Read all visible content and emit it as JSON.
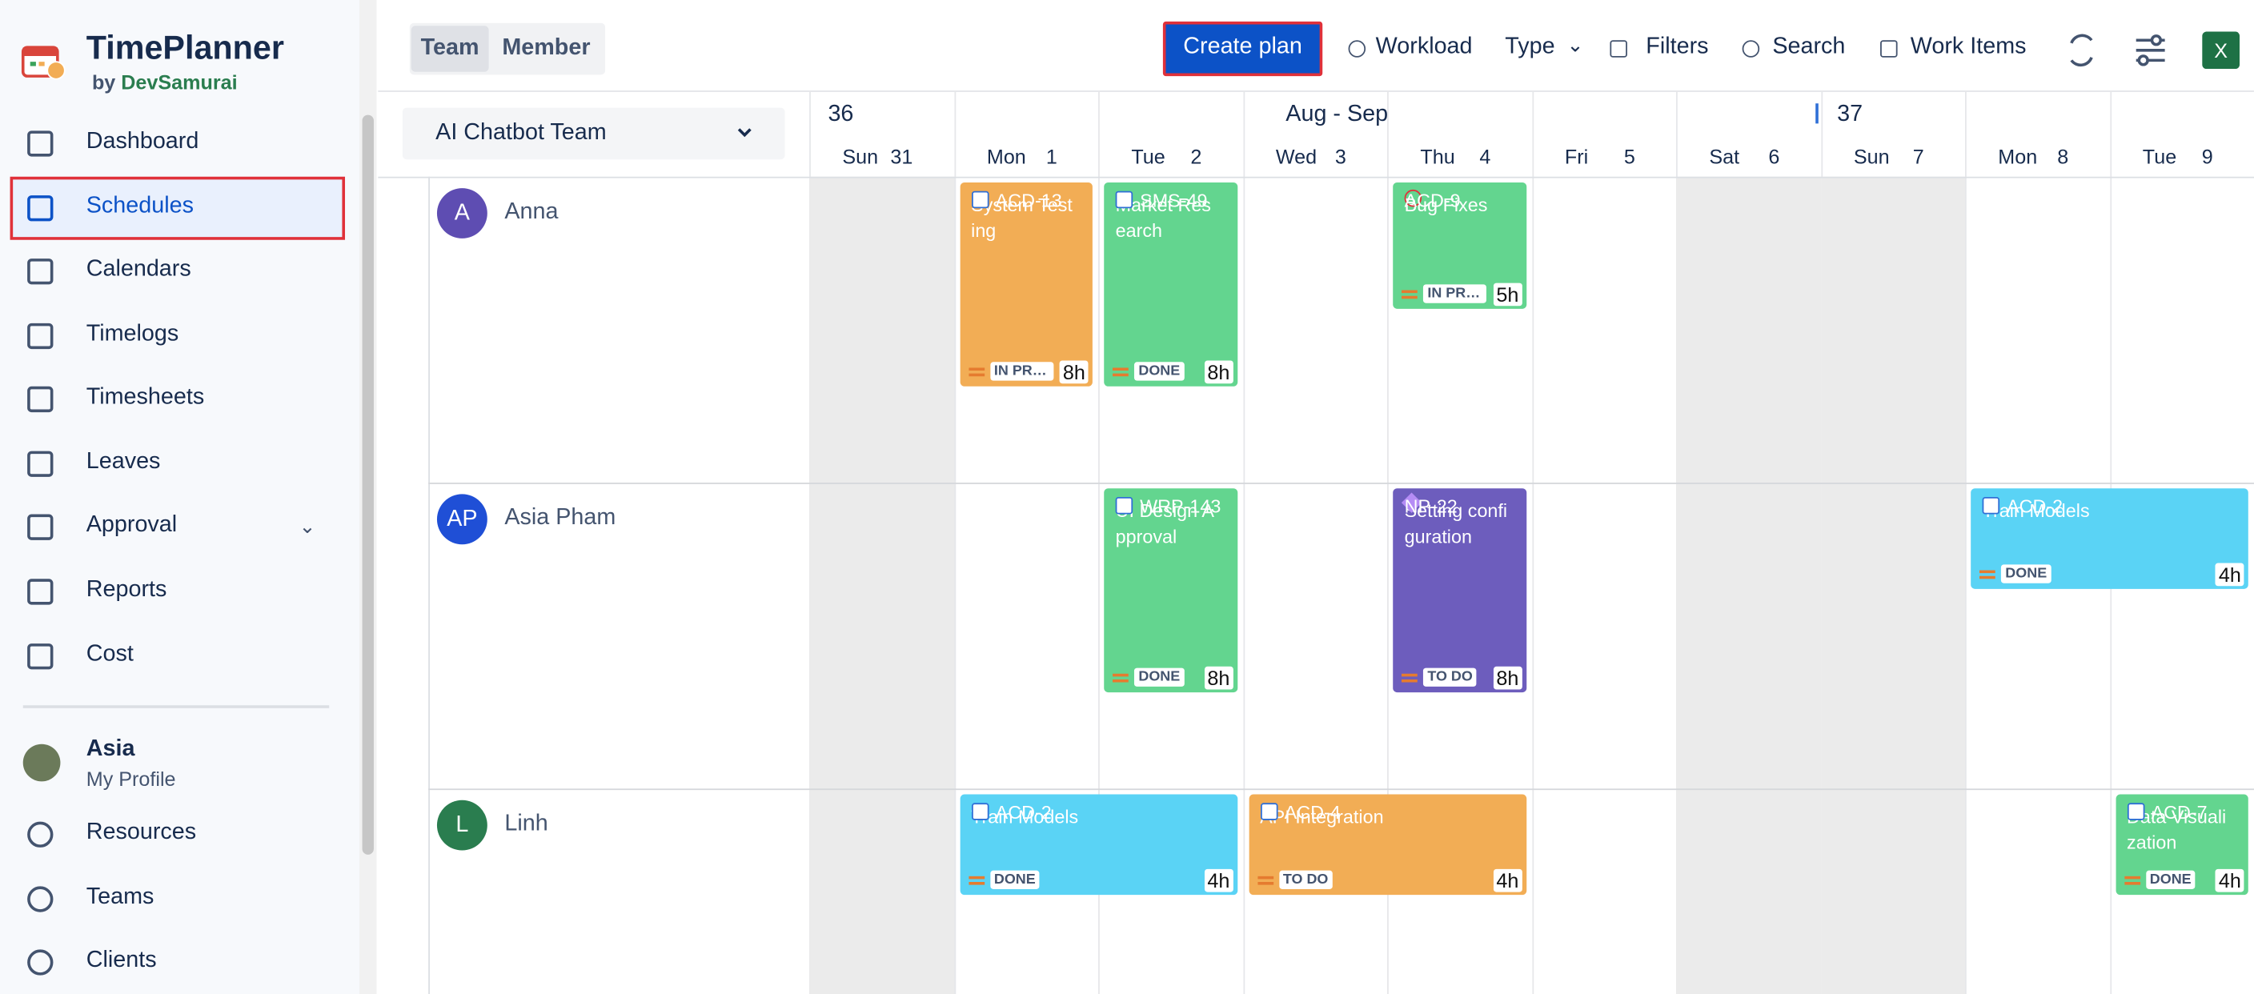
{
  "app": {
    "title": "TimePlanner",
    "by": "by",
    "brand": "DevSamurai"
  },
  "nav": {
    "items": [
      "Dashboard",
      "Schedules",
      "Calendars",
      "Timelogs",
      "Timesheets",
      "Leaves",
      "Approval",
      "Reports",
      "Cost"
    ],
    "profile": {
      "name": "Asia",
      "sub": "My Profile"
    },
    "items2": [
      "Resources",
      "Teams",
      "Clients"
    ]
  },
  "toolbar": {
    "tabs": [
      "Team",
      "Member"
    ],
    "create": "Create plan",
    "buttons": [
      "Workload",
      "Type",
      "Filters",
      "Search",
      "Work Items"
    ]
  },
  "team_select": "AI Chatbot Team",
  "calendar": {
    "weeks": [
      "36",
      "37"
    ],
    "month": "Aug - Sep",
    "days": [
      {
        "name": "Sun",
        "num": 31
      },
      {
        "name": "Mon",
        "num": 1
      },
      {
        "name": "Tue",
        "num": 2
      },
      {
        "name": "Wed",
        "num": 3
      },
      {
        "name": "Thu",
        "num": 4
      },
      {
        "name": "Fri",
        "num": 5
      },
      {
        "name": "Sat",
        "num": 6
      },
      {
        "name": "Sun",
        "num": 7
      },
      {
        "name": "Mon",
        "num": 8
      },
      {
        "name": "Tue",
        "num": 9
      }
    ]
  },
  "members": [
    {
      "initials": "A",
      "name": "Anna",
      "tasks": [
        {
          "key": "ACD-13",
          "title": "System Testing",
          "status": "IN PROGRESS",
          "hours": "8h"
        },
        {
          "key": "SMS-49",
          "title": "Market Research",
          "status": "DONE",
          "hours": "8h"
        },
        {
          "key": "ACD-9",
          "title": "Bug Fixes",
          "status": "IN PROGRESS",
          "hours": "5h"
        }
      ]
    },
    {
      "initials": "AP",
      "name": "Asia Pham",
      "tasks": [
        {
          "key": "WRP-143",
          "title": "UI Design Approval",
          "status": "DONE",
          "hours": "8h"
        },
        {
          "key": "NP-22",
          "title": "Setting configuration",
          "status": "TO DO",
          "hours": "8h"
        },
        {
          "key": "ACD-2",
          "title": "Train Models",
          "status": "DONE",
          "hours": "4h"
        }
      ]
    },
    {
      "initials": "L",
      "name": "Linh",
      "tasks": [
        {
          "key": "ACD-2",
          "title": "Train Models",
          "status": "DONE",
          "hours": "4h"
        },
        {
          "key": "ACD-4",
          "title": "API Integration",
          "status": "TO DO",
          "hours": "4h"
        },
        {
          "key": "ACD-7",
          "title": "Data Visualization",
          "status": "DONE",
          "hours": "4h"
        }
      ]
    }
  ]
}
